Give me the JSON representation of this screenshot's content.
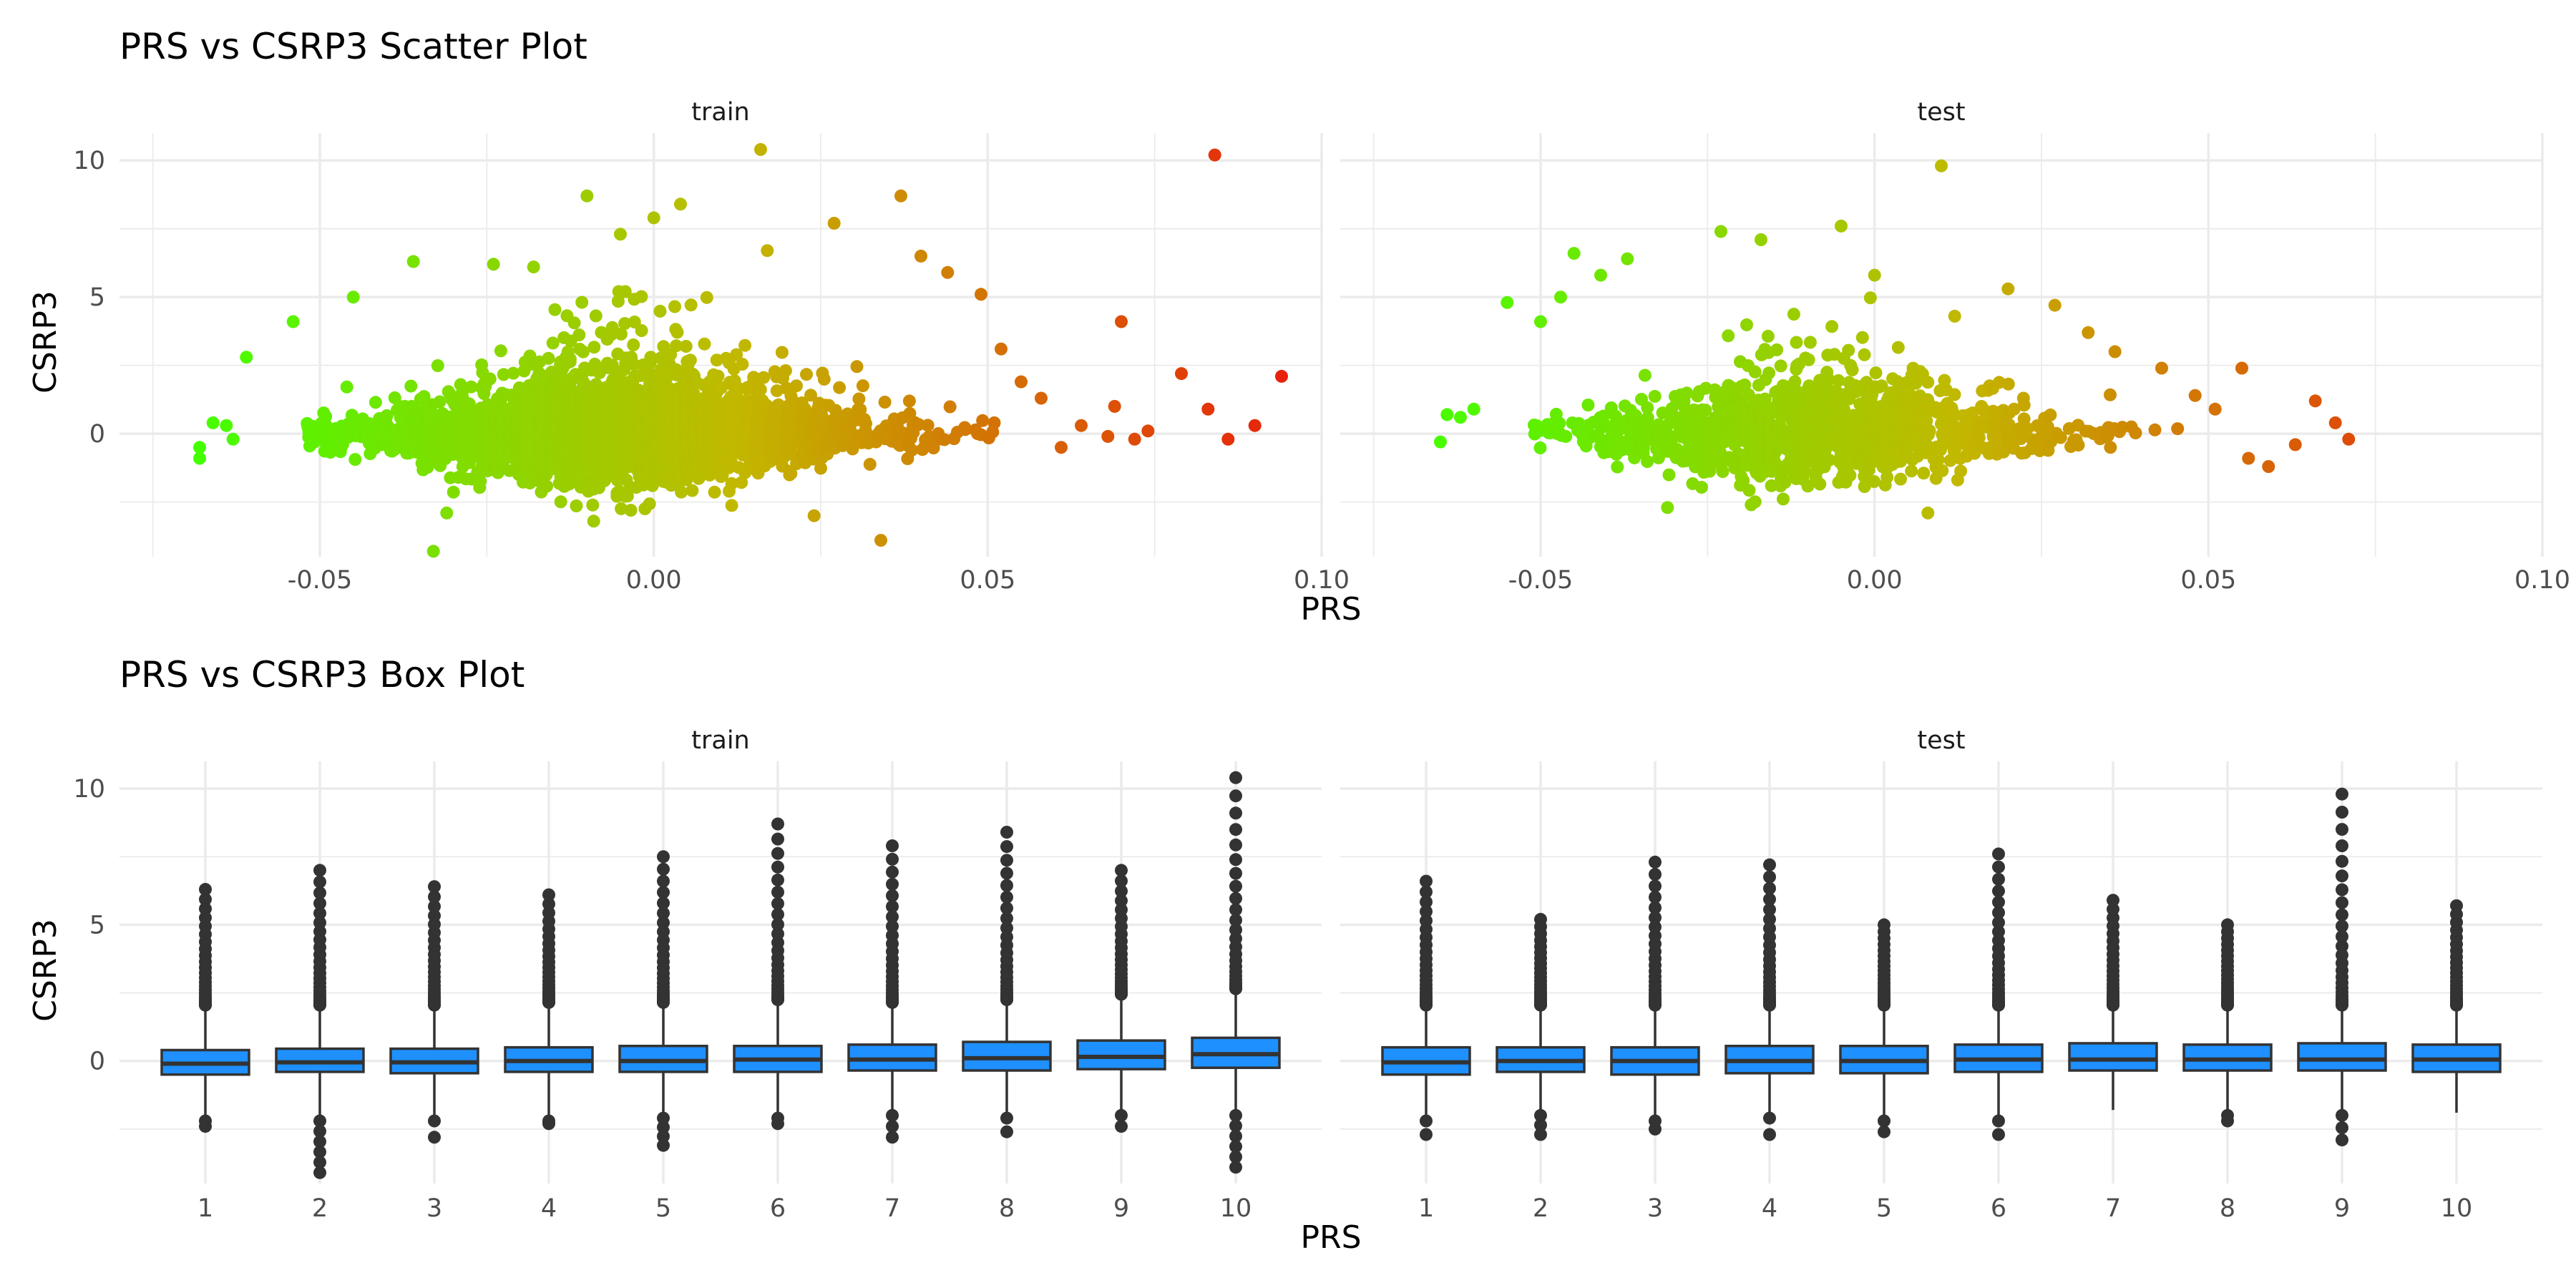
{
  "chart_data": [
    {
      "type": "scatter",
      "title": "PRS vs CSRP3 Scatter Plot",
      "xlabel": "PRS",
      "ylabel": "CSRP3",
      "xlim": [
        -0.08,
        0.1
      ],
      "ylim": [
        -4.5,
        11
      ],
      "x_ticks": [
        -0.05,
        0.0,
        0.05,
        0.1
      ],
      "x_tick_labels": [
        "-0.05",
        "0.00",
        "0.05",
        "0.10"
      ],
      "y_ticks": [
        0,
        5,
        10
      ],
      "y_tick_labels": [
        "0",
        "5",
        "10"
      ],
      "color_scale": {
        "low": "#44ff00",
        "mid": "#c2b800",
        "high": "#e8220a",
        "by": "PRS"
      },
      "grid": true,
      "panels": [
        {
          "facet": "train",
          "n_points_approx": 9000,
          "points": [
            [
              -0.068,
              -0.5
            ],
            [
              -0.068,
              -0.9
            ],
            [
              -0.066,
              0.4
            ],
            [
              -0.064,
              0.3
            ],
            [
              -0.063,
              -0.2
            ],
            [
              -0.061,
              2.8
            ],
            [
              -0.054,
              4.1
            ],
            [
              -0.045,
              5.0
            ],
            [
              -0.036,
              6.3
            ],
            [
              -0.033,
              -4.3
            ],
            [
              -0.031,
              -2.9
            ],
            [
              -0.024,
              6.2
            ],
            [
              -0.018,
              6.1
            ],
            [
              -0.01,
              8.7
            ],
            [
              -0.009,
              -3.2
            ],
            [
              -0.005,
              7.3
            ],
            [
              0.0,
              7.9
            ],
            [
              0.004,
              8.4
            ],
            [
              0.016,
              10.4
            ],
            [
              0.017,
              6.7
            ],
            [
              0.024,
              -3.0
            ],
            [
              0.027,
              7.7
            ],
            [
              0.034,
              -3.9
            ],
            [
              0.037,
              8.7
            ],
            [
              0.04,
              6.5
            ],
            [
              0.044,
              5.9
            ],
            [
              0.049,
              5.1
            ],
            [
              0.052,
              3.1
            ],
            [
              0.055,
              1.9
            ],
            [
              0.058,
              1.3
            ],
            [
              0.061,
              -0.5
            ],
            [
              0.064,
              0.3
            ],
            [
              0.068,
              -0.1
            ],
            [
              0.069,
              1.0
            ],
            [
              0.07,
              4.1
            ],
            [
              0.072,
              -0.2
            ],
            [
              0.074,
              0.1
            ],
            [
              0.079,
              2.2
            ],
            [
              0.083,
              0.9
            ],
            [
              0.084,
              10.2
            ],
            [
              0.086,
              -0.2
            ],
            [
              0.09,
              0.3
            ],
            [
              0.094,
              2.1
            ]
          ]
        },
        {
          "facet": "test",
          "n_points_approx": 3500,
          "points": [
            [
              -0.065,
              -0.3
            ],
            [
              -0.064,
              0.7
            ],
            [
              -0.062,
              0.6
            ],
            [
              -0.06,
              0.9
            ],
            [
              -0.055,
              4.8
            ],
            [
              -0.05,
              4.1
            ],
            [
              -0.047,
              5.0
            ],
            [
              -0.045,
              6.6
            ],
            [
              -0.041,
              5.8
            ],
            [
              -0.037,
              6.4
            ],
            [
              -0.031,
              -2.7
            ],
            [
              -0.023,
              7.4
            ],
            [
              -0.017,
              7.1
            ],
            [
              -0.005,
              7.6
            ],
            [
              0.0,
              5.8
            ],
            [
              0.008,
              -2.9
            ],
            [
              0.01,
              9.8
            ],
            [
              0.012,
              4.3
            ],
            [
              0.02,
              5.3
            ],
            [
              0.027,
              4.7
            ],
            [
              0.032,
              3.7
            ],
            [
              0.036,
              3.0
            ],
            [
              0.043,
              2.4
            ],
            [
              0.048,
              1.4
            ],
            [
              0.051,
              0.9
            ],
            [
              0.055,
              2.4
            ],
            [
              0.056,
              -0.9
            ],
            [
              0.059,
              -1.2
            ],
            [
              0.063,
              -0.4
            ],
            [
              0.066,
              1.2
            ],
            [
              0.069,
              0.4
            ],
            [
              0.071,
              -0.2
            ]
          ]
        }
      ]
    },
    {
      "type": "box",
      "title": "PRS vs CSRP3 Box Plot",
      "xlabel": "PRS",
      "ylabel": "CSRP3",
      "ylim": [
        -4.5,
        11
      ],
      "y_ticks": [
        0,
        5,
        10
      ],
      "y_tick_labels": [
        "0",
        "5",
        "10"
      ],
      "categories": [
        "1",
        "2",
        "3",
        "4",
        "5",
        "6",
        "7",
        "8",
        "9",
        "10"
      ],
      "fill_color": "#1e90ff",
      "grid": true,
      "panels": [
        {
          "facet": "train",
          "boxes": [
            {
              "q1": -0.5,
              "median": -0.1,
              "q3": 0.4,
              "lower": -2.0,
              "upper": 1.9,
              "out_low_max": -2.4,
              "out_high": [
                2.0,
                6.3
              ]
            },
            {
              "q1": -0.4,
              "median": -0.05,
              "q3": 0.45,
              "lower": -2.0,
              "upper": 2.0,
              "out_low_max": -4.1,
              "out_high": [
                2.0,
                7.0
              ]
            },
            {
              "q1": -0.45,
              "median": -0.05,
              "q3": 0.45,
              "lower": -2.0,
              "upper": 2.0,
              "out_low_max": -2.8,
              "out_high": [
                2.0,
                6.4
              ]
            },
            {
              "q1": -0.4,
              "median": 0.0,
              "q3": 0.5,
              "lower": -2.0,
              "upper": 2.1,
              "out_low_max": -2.3,
              "out_high": [
                2.1,
                6.1
              ]
            },
            {
              "q1": -0.4,
              "median": 0.0,
              "q3": 0.55,
              "lower": -1.9,
              "upper": 2.1,
              "out_low_max": -3.1,
              "out_high": [
                2.1,
                7.5
              ]
            },
            {
              "q1": -0.4,
              "median": 0.05,
              "q3": 0.55,
              "lower": -1.9,
              "upper": 2.2,
              "out_low_max": -2.3,
              "out_high": [
                2.2,
                8.7
              ]
            },
            {
              "q1": -0.35,
              "median": 0.05,
              "q3": 0.6,
              "lower": -1.8,
              "upper": 2.1,
              "out_low_max": -2.8,
              "out_high": [
                2.1,
                7.9
              ]
            },
            {
              "q1": -0.35,
              "median": 0.1,
              "q3": 0.7,
              "lower": -1.9,
              "upper": 2.2,
              "out_low_max": -2.6,
              "out_high": [
                2.2,
                8.4
              ]
            },
            {
              "q1": -0.3,
              "median": 0.15,
              "q3": 0.75,
              "lower": -1.8,
              "upper": 2.4,
              "out_low_max": -2.4,
              "out_high": [
                2.4,
                7.0
              ]
            },
            {
              "q1": -0.25,
              "median": 0.25,
              "q3": 0.85,
              "lower": -1.8,
              "upper": 2.6,
              "out_low_max": -3.9,
              "out_high": [
                2.6,
                10.4
              ]
            }
          ]
        },
        {
          "facet": "test",
          "boxes": [
            {
              "q1": -0.5,
              "median": -0.05,
              "q3": 0.5,
              "lower": -2.0,
              "upper": 2.0,
              "out_low_max": -2.7,
              "out_high": [
                2.0,
                6.6
              ]
            },
            {
              "q1": -0.4,
              "median": 0.0,
              "q3": 0.5,
              "lower": -1.8,
              "upper": 2.0,
              "out_low_max": -2.7,
              "out_high": [
                2.0,
                5.2
              ]
            },
            {
              "q1": -0.5,
              "median": 0.0,
              "q3": 0.5,
              "lower": -2.0,
              "upper": 2.0,
              "out_low_max": -2.5,
              "out_high": [
                2.0,
                7.3
              ]
            },
            {
              "q1": -0.45,
              "median": 0.0,
              "q3": 0.55,
              "lower": -1.9,
              "upper": 2.0,
              "out_low_max": -2.7,
              "out_high": [
                2.0,
                7.2
              ]
            },
            {
              "q1": -0.45,
              "median": 0.0,
              "q3": 0.55,
              "lower": -2.0,
              "upper": 2.0,
              "out_low_max": -2.6,
              "out_high": [
                2.0,
                5.0
              ]
            },
            {
              "q1": -0.4,
              "median": 0.05,
              "q3": 0.6,
              "lower": -2.0,
              "upper": 2.0,
              "out_low_max": -2.7,
              "out_high": [
                2.0,
                7.6
              ]
            },
            {
              "q1": -0.35,
              "median": 0.05,
              "q3": 0.65,
              "lower": -1.8,
              "upper": 2.0,
              "out_low_max": -1.8,
              "out_high": [
                2.0,
                5.9
              ]
            },
            {
              "q1": -0.35,
              "median": 0.05,
              "q3": 0.6,
              "lower": -1.8,
              "upper": 2.0,
              "out_low_max": -2.2,
              "out_high": [
                2.0,
                5.0
              ]
            },
            {
              "q1": -0.35,
              "median": 0.05,
              "q3": 0.65,
              "lower": -1.8,
              "upper": 2.0,
              "out_low_max": -2.9,
              "out_high": [
                2.0,
                9.8
              ]
            },
            {
              "q1": -0.4,
              "median": 0.05,
              "q3": 0.6,
              "lower": -1.9,
              "upper": 2.0,
              "out_low_max": -1.9,
              "out_high": [
                2.0,
                5.7
              ]
            }
          ]
        }
      ]
    }
  ]
}
